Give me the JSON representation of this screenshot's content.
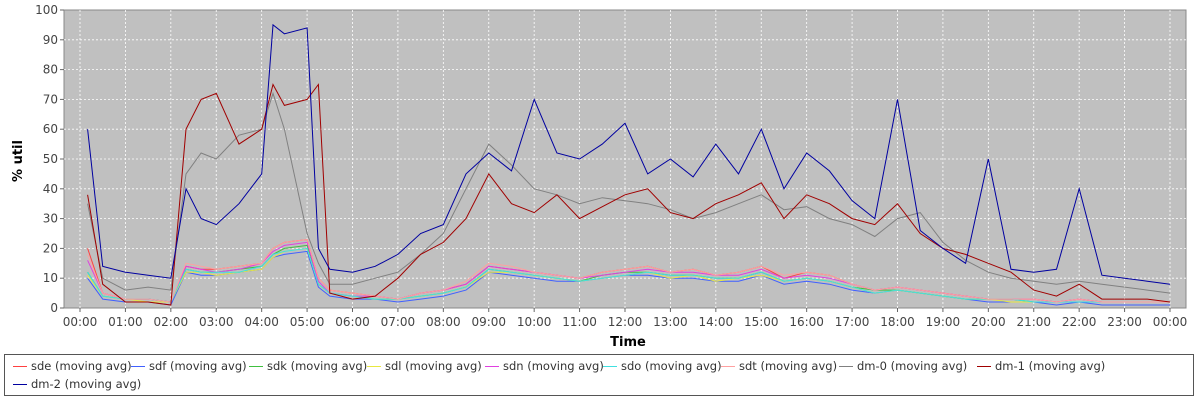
{
  "chart_data": {
    "type": "line",
    "title": "",
    "xlabel": "Time",
    "ylabel": "% util",
    "xlim": [
      "00:00",
      "24:00"
    ],
    "ylim": [
      0,
      100
    ],
    "grid": true,
    "legend_position": "bottom",
    "x_ticks": [
      "00:00",
      "01:00",
      "02:00",
      "03:00",
      "04:00",
      "05:00",
      "06:00",
      "07:00",
      "08:00",
      "09:00",
      "10:00",
      "11:00",
      "12:00",
      "13:00",
      "14:00",
      "15:00",
      "16:00",
      "17:00",
      "18:00",
      "19:00",
      "20:00",
      "21:00",
      "22:00",
      "23:00",
      "00:00"
    ],
    "y_ticks": [
      "0",
      "10",
      "20",
      "30",
      "40",
      "50",
      "60",
      "70",
      "80",
      "90",
      "100"
    ],
    "x": [
      "00:10",
      "00:30",
      "01:00",
      "01:30",
      "02:00",
      "02:20",
      "02:40",
      "03:00",
      "03:30",
      "04:00",
      "04:15",
      "04:30",
      "05:00",
      "05:15",
      "05:30",
      "06:00",
      "06:30",
      "07:00",
      "07:30",
      "08:00",
      "08:30",
      "09:00",
      "09:30",
      "10:00",
      "10:30",
      "11:00",
      "11:30",
      "12:00",
      "12:30",
      "13:00",
      "13:30",
      "14:00",
      "14:30",
      "15:00",
      "15:30",
      "16:00",
      "16:30",
      "17:00",
      "17:30",
      "18:00",
      "18:30",
      "19:00",
      "19:30",
      "20:00",
      "20:30",
      "21:00",
      "21:30",
      "22:00",
      "22:30",
      "23:00",
      "23:30",
      "00:00"
    ],
    "series": [
      {
        "name": "sde (moving avg)",
        "color": "#ff4040",
        "values": [
          20,
          5,
          3,
          3,
          2,
          14,
          13,
          13,
          14,
          15,
          20,
          22,
          23,
          10,
          6,
          5,
          4,
          3,
          5,
          6,
          8,
          14,
          13,
          12,
          11,
          10,
          12,
          13,
          14,
          12,
          13,
          11,
          12,
          14,
          10,
          12,
          11,
          8,
          6,
          7,
          6,
          5,
          4,
          3,
          3,
          3,
          2,
          3,
          2,
          2,
          2,
          2
        ]
      },
      {
        "name": "sdf (moving avg)",
        "color": "#4060ff",
        "values": [
          10,
          3,
          2,
          2,
          1,
          12,
          11,
          11,
          12,
          13,
          17,
          18,
          19,
          7,
          4,
          3,
          3,
          2,
          3,
          4,
          6,
          12,
          11,
          10,
          9,
          9,
          10,
          11,
          11,
          10,
          10,
          9,
          9,
          11,
          8,
          9,
          8,
          6,
          5,
          6,
          5,
          4,
          3,
          2,
          2,
          2,
          1,
          2,
          1,
          1,
          1,
          1
        ]
      },
      {
        "name": "sdk (moving avg)",
        "color": "#40c040",
        "values": [
          12,
          4,
          3,
          3,
          2,
          13,
          12,
          12,
          13,
          14,
          18,
          20,
          21,
          8,
          5,
          4,
          3,
          3,
          4,
          5,
          7,
          13,
          12,
          11,
          10,
          9,
          11,
          12,
          12,
          11,
          11,
          10,
          10,
          12,
          9,
          10,
          9,
          7,
          6,
          6,
          5,
          4,
          3,
          3,
          3,
          2,
          2,
          2,
          2,
          2,
          2,
          2
        ]
      },
      {
        "name": "sdl (moving avg)",
        "color": "#e8e840",
        "values": [
          11,
          4,
          3,
          2,
          2,
          12,
          12,
          11,
          12,
          13,
          17,
          19,
          20,
          8,
          5,
          4,
          3,
          3,
          4,
          5,
          7,
          12,
          12,
          11,
          10,
          9,
          10,
          11,
          12,
          10,
          11,
          9,
          10,
          11,
          9,
          10,
          9,
          7,
          5,
          6,
          5,
          4,
          3,
          3,
          2,
          2,
          2,
          2,
          2,
          2,
          2,
          2
        ]
      },
      {
        "name": "sdn (moving avg)",
        "color": "#e040e0",
        "values": [
          16,
          5,
          3,
          3,
          2,
          14,
          13,
          12,
          13,
          15,
          19,
          21,
          22,
          9,
          5,
          4,
          4,
          3,
          5,
          6,
          8,
          14,
          13,
          12,
          11,
          10,
          11,
          12,
          13,
          12,
          12,
          11,
          11,
          13,
          10,
          11,
          10,
          8,
          6,
          7,
          6,
          5,
          4,
          3,
          3,
          3,
          2,
          3,
          2,
          2,
          2,
          2
        ]
      },
      {
        "name": "sdo (moving avg)",
        "color": "#40e0e0",
        "values": [
          12,
          4,
          3,
          3,
          2,
          13,
          12,
          12,
          12,
          14,
          18,
          19,
          20,
          8,
          5,
          4,
          3,
          3,
          4,
          5,
          7,
          13,
          12,
          11,
          10,
          9,
          10,
          11,
          12,
          11,
          11,
          10,
          10,
          12,
          9,
          10,
          9,
          7,
          5,
          6,
          5,
          4,
          3,
          3,
          3,
          2,
          2,
          2,
          2,
          2,
          2,
          2
        ]
      },
      {
        "name": "sdt (moving avg)",
        "color": "#ffa0a0",
        "values": [
          18,
          5,
          3,
          3,
          2,
          15,
          14,
          13,
          14,
          15,
          20,
          22,
          23,
          10,
          6,
          5,
          4,
          3,
          5,
          6,
          9,
          15,
          14,
          12,
          11,
          10,
          12,
          13,
          14,
          12,
          13,
          11,
          12,
          14,
          11,
          12,
          11,
          8,
          6,
          7,
          6,
          5,
          4,
          3,
          3,
          3,
          2,
          3,
          2,
          2,
          2,
          2
        ]
      },
      {
        "name": "dm-0 (moving avg)",
        "color": "#808080",
        "values": [
          35,
          10,
          6,
          7,
          6,
          45,
          52,
          50,
          58,
          60,
          72,
          60,
          25,
          15,
          8,
          8,
          10,
          12,
          18,
          25,
          40,
          55,
          48,
          40,
          38,
          35,
          37,
          36,
          35,
          33,
          30,
          32,
          35,
          38,
          33,
          34,
          30,
          28,
          24,
          30,
          32,
          22,
          16,
          12,
          10,
          9,
          8,
          9,
          8,
          7,
          6,
          5
        ]
      },
      {
        "name": "dm-1 (moving avg)",
        "color": "#a00000",
        "values": [
          38,
          8,
          2,
          2,
          1,
          60,
          70,
          72,
          55,
          60,
          75,
          68,
          70,
          75,
          5,
          3,
          4,
          10,
          18,
          22,
          30,
          45,
          35,
          32,
          38,
          30,
          34,
          38,
          40,
          32,
          30,
          35,
          38,
          42,
          30,
          38,
          35,
          30,
          28,
          35,
          25,
          20,
          18,
          15,
          12,
          6,
          4,
          8,
          3,
          3,
          3,
          2
        ]
      },
      {
        "name": "dm-2 (moving avg)",
        "color": "#0000a0",
        "values": [
          60,
          14,
          12,
          11,
          10,
          40,
          30,
          28,
          35,
          45,
          95,
          92,
          94,
          20,
          13,
          12,
          14,
          18,
          25,
          28,
          45,
          52,
          46,
          70,
          52,
          50,
          55,
          62,
          45,
          50,
          44,
          55,
          45,
          60,
          40,
          52,
          46,
          36,
          30,
          70,
          26,
          20,
          15,
          50,
          13,
          12,
          13,
          40,
          11,
          10,
          9,
          8
        ]
      }
    ]
  }
}
